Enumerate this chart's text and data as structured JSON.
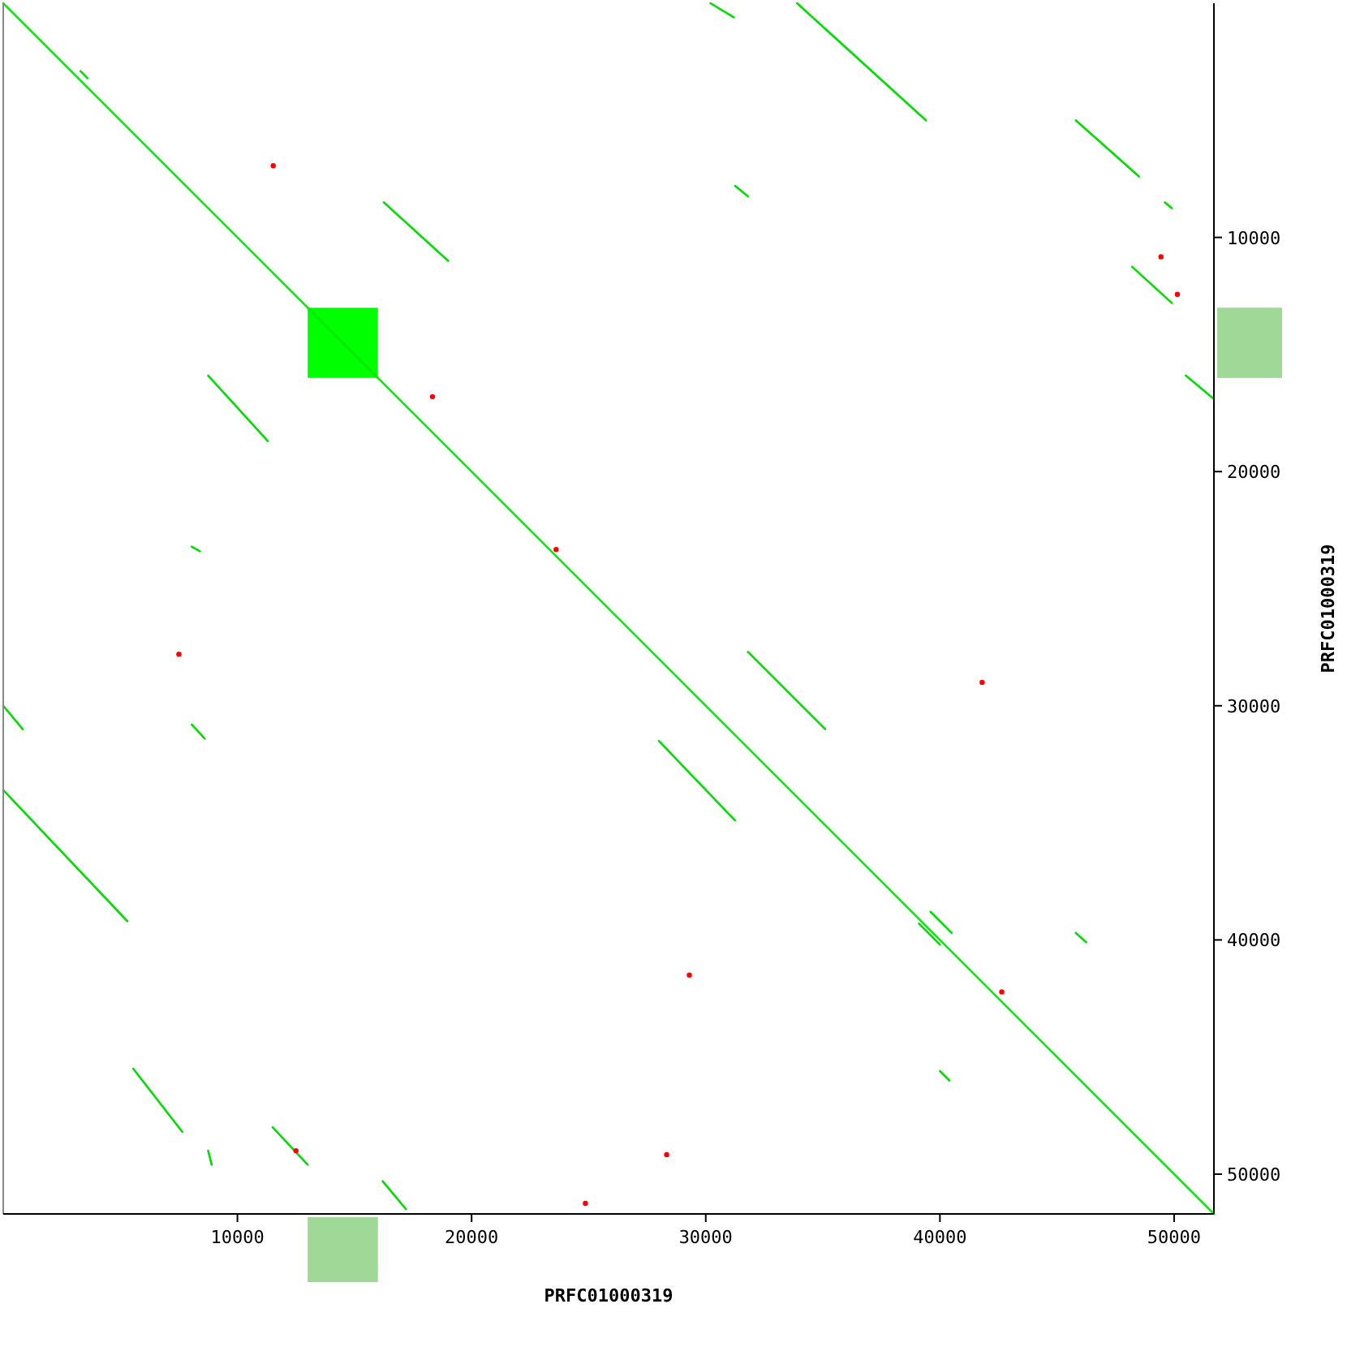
{
  "chart_data": {
    "type": "line",
    "xlabel": "PRFC01000319",
    "ylabel": "PRFC01000319",
    "xlim": [
      0,
      51700
    ],
    "ylim": [
      51700,
      0
    ],
    "xticks": [
      10000,
      20000,
      30000,
      40000,
      50000
    ],
    "yticks": [
      10000,
      20000,
      30000,
      40000,
      50000
    ],
    "series": [
      {
        "color": "#00cc00",
        "x": [
          13000,
          16000
        ],
        "values": [
          13000,
          16000
        ],
        "lower": [
          13000,
          13000
        ],
        "upper": [
          16000,
          16000
        ]
      },
      {
        "color": "#00ee00",
        "x": [
          0,
          51700
        ],
        "values": [
          0,
          51700
        ]
      },
      {
        "color": "#00dd00",
        "x": [
          30200,
          31200
        ],
        "values": [
          0,
          600
        ]
      },
      {
        "color": "#00dd00",
        "x": [
          33900,
          39400
        ],
        "values": [
          0,
          5000
        ]
      },
      {
        "color": "#00dd00",
        "x": [
          45800,
          48500
        ],
        "values": [
          5000,
          7400
        ]
      },
      {
        "color": "#00dd00",
        "x": [
          48200,
          49900
        ],
        "values": [
          11250,
          12800
        ]
      },
      {
        "color": "#00dd00",
        "x": [
          50500,
          51700
        ],
        "values": [
          15900,
          16900
        ]
      },
      {
        "color": "#00dd00",
        "x": [
          8750,
          11300
        ],
        "values": [
          15900,
          18700
        ]
      },
      {
        "color": "#00dd00",
        "x": [
          16250,
          19000
        ],
        "values": [
          8500,
          11000
        ]
      },
      {
        "color": "#00dd00",
        "x": [
          0,
          830
        ],
        "values": [
          30000,
          31000
        ]
      },
      {
        "color": "#00dd00",
        "x": [
          0,
          5300
        ],
        "values": [
          33600,
          39200
        ]
      },
      {
        "color": "#00dd00",
        "x": [
          31800,
          35100
        ],
        "values": [
          27700,
          31000
        ]
      },
      {
        "color": "#00dd00",
        "x": [
          28000,
          31250
        ],
        "values": [
          31500,
          34900
        ]
      },
      {
        "color": "#00dd00",
        "x": [
          5550,
          7650
        ],
        "values": [
          45500,
          48200
        ]
      },
      {
        "color": "#00dd00",
        "x": [
          11500,
          13000
        ],
        "values": [
          48000,
          49600
        ]
      },
      {
        "color": "#00dd00",
        "x": [
          16200,
          17200
        ],
        "values": [
          50300,
          51500
        ]
      },
      {
        "color": "#00dd00",
        "x": [
          3300,
          3600
        ],
        "values": [
          2900,
          3200
        ]
      },
      {
        "color": "#00dd00",
        "x": [
          31250,
          31800
        ],
        "values": [
          7800,
          8250
        ]
      },
      {
        "color": "#00dd00",
        "x": [
          8050,
          8600
        ],
        "values": [
          30800,
          31400
        ]
      },
      {
        "color": "#00dd00",
        "x": [
          8050,
          8400
        ],
        "values": [
          23200,
          23400
        ]
      },
      {
        "color": "#00dd00",
        "x": [
          39600,
          40500
        ],
        "values": [
          38800,
          39700
        ]
      },
      {
        "color": "#00dd00",
        "x": [
          39100,
          40000
        ],
        "values": [
          39300,
          40200
        ]
      },
      {
        "color": "#00dd00",
        "x": [
          45800,
          46250
        ],
        "values": [
          39700,
          40100
        ]
      },
      {
        "color": "#00dd00",
        "x": [
          40000,
          40400
        ],
        "values": [
          45600,
          46000
        ]
      },
      {
        "color": "#00dd00",
        "x": [
          8750,
          8900
        ],
        "values": [
          49000,
          49600
        ]
      },
      {
        "color": "#00dd00",
        "x": [
          49600,
          49900
        ],
        "values": [
          8500,
          8750
        ]
      },
      {
        "type": "scatter",
        "color": "#ff0000",
        "marker": "circle",
        "x": [
          11530,
          18330,
          23610,
          7500,
          41800,
          29300,
          12500,
          28330,
          24860,
          49440,
          50140,
          42640
        ],
        "values": [
          6940,
          16800,
          23330,
          27800,
          29000,
          41500,
          49000,
          49170,
          51250,
          10830,
          12430,
          42220
        ]
      }
    ]
  }
}
